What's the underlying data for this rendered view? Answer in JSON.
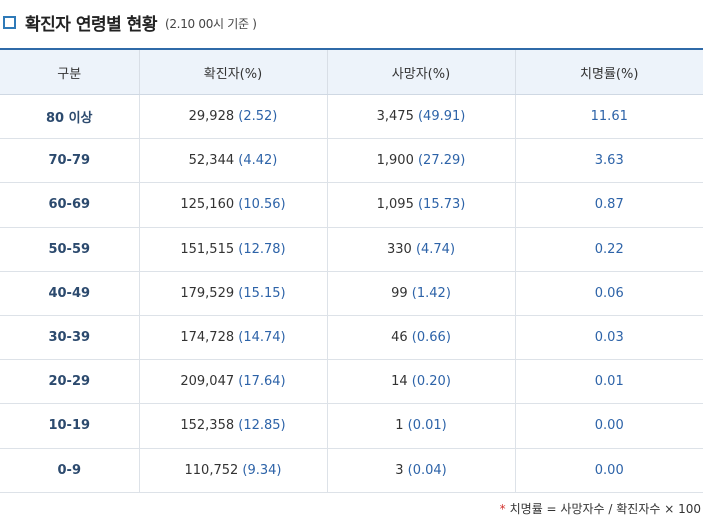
{
  "header": {
    "title": "확진자 연령별 현황",
    "subtitle": "(2.10 00시 기준 )"
  },
  "table": {
    "columns": [
      "구분",
      "확진자(%)",
      "사망자(%)",
      "치명률(%)"
    ],
    "rows": [
      {
        "group": "80 이상",
        "confirmed": "29,928",
        "confirmed_pct": "(2.52)",
        "deaths": "3,475",
        "deaths_pct": "(49.91)",
        "fatality": "11.61"
      },
      {
        "group": "70-79",
        "confirmed": "52,344",
        "confirmed_pct": "(4.42)",
        "deaths": "1,900",
        "deaths_pct": "(27.29)",
        "fatality": "3.63"
      },
      {
        "group": "60-69",
        "confirmed": "125,160",
        "confirmed_pct": "(10.56)",
        "deaths": "1,095",
        "deaths_pct": "(15.73)",
        "fatality": "0.87"
      },
      {
        "group": "50-59",
        "confirmed": "151,515",
        "confirmed_pct": "(12.78)",
        "deaths": "330",
        "deaths_pct": "(4.74)",
        "fatality": "0.22"
      },
      {
        "group": "40-49",
        "confirmed": "179,529",
        "confirmed_pct": "(15.15)",
        "deaths": "99",
        "deaths_pct": "(1.42)",
        "fatality": "0.06"
      },
      {
        "group": "30-39",
        "confirmed": "174,728",
        "confirmed_pct": "(14.74)",
        "deaths": "46",
        "deaths_pct": "(0.66)",
        "fatality": "0.03"
      },
      {
        "group": "20-29",
        "confirmed": "209,047",
        "confirmed_pct": "(17.64)",
        "deaths": "14",
        "deaths_pct": "(0.20)",
        "fatality": "0.01"
      },
      {
        "group": "10-19",
        "confirmed": "152,358",
        "confirmed_pct": "(12.85)",
        "deaths": "1",
        "deaths_pct": "(0.01)",
        "fatality": "0.00"
      },
      {
        "group": "0-9",
        "confirmed": "110,752",
        "confirmed_pct": "(9.34)",
        "deaths": "3",
        "deaths_pct": "(0.04)",
        "fatality": "0.00"
      }
    ]
  },
  "footnote": {
    "star": "*",
    "text": "치명률 = 사망자수 / 확진자수 × 100"
  },
  "colors": {
    "accent": "#2f6aa8",
    "percent_text": "#2d63a8",
    "header_bg": "#edf3fa",
    "star": "#d2322d"
  },
  "icons": {
    "title_marker": "square-bullet-icon"
  }
}
